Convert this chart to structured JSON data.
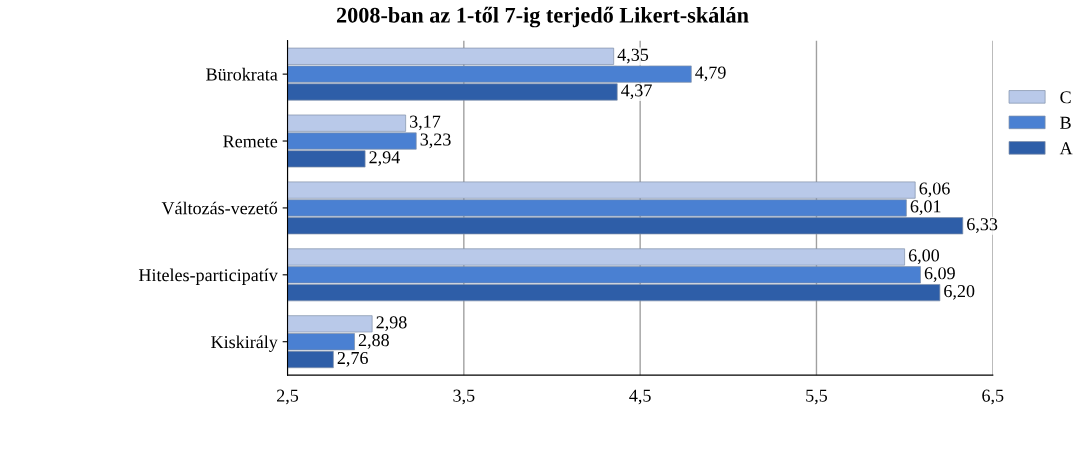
{
  "chart_data": {
    "type": "bar",
    "orientation": "horizontal",
    "title": "2008-ban az 1-től 7-ig terjedő Likert-skálán",
    "categories": [
      "Bürokrata",
      "Remete",
      "Változás-vezető",
      "Hiteles-participatív",
      "Kiskirály"
    ],
    "series": [
      {
        "name": "C",
        "color": "#b9c9e9",
        "values": [
          4.35,
          3.17,
          6.06,
          6.0,
          2.98
        ],
        "value_labels": [
          "4,35",
          "3,17",
          "6,06",
          "6,00",
          "2,98"
        ]
      },
      {
        "name": "B",
        "color": "#4a80d2",
        "values": [
          4.79,
          3.23,
          6.01,
          6.09,
          2.88
        ],
        "value_labels": [
          "4,79",
          "3,23",
          "6,01",
          "6,09",
          "2,88"
        ]
      },
      {
        "name": "A",
        "color": "#2e5ea8",
        "values": [
          4.37,
          2.94,
          6.33,
          6.2,
          2.76
        ],
        "value_labels": [
          "4,37",
          "2,94",
          "6,33",
          "6,20",
          "2,76"
        ]
      }
    ],
    "xlim": [
      2.5,
      6.5
    ],
    "xticks": [
      {
        "value": 2.5,
        "label": "2,5"
      },
      {
        "value": 3.5,
        "label": "3,5"
      },
      {
        "value": 4.5,
        "label": "4,5"
      },
      {
        "value": 5.5,
        "label": "5,5"
      },
      {
        "value": 6.5,
        "label": "6,5"
      }
    ],
    "grid": "x",
    "legend": "right"
  }
}
